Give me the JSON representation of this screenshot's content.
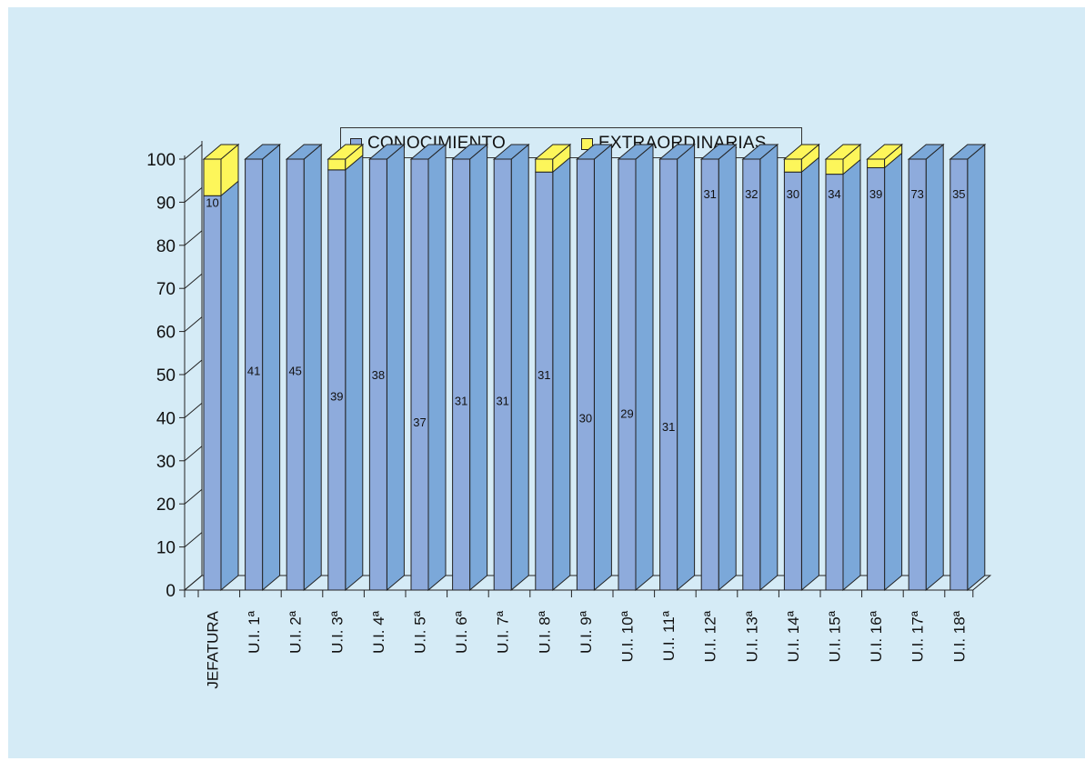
{
  "chart_data": {
    "type": "bar",
    "stacked": true,
    "three_d": true,
    "percent_stacked": true,
    "title": "",
    "xlabel": "",
    "ylabel": "",
    "ylim": [
      0,
      100
    ],
    "yticks": [
      "0",
      "10",
      "20",
      "30",
      "40",
      "50",
      "60",
      "70",
      "80",
      "90",
      "100"
    ],
    "categories": [
      "JEFATURA",
      "U.I. 1ª",
      "U.I. 2ª",
      "U.I. 3ª",
      "U.I. 4ª",
      "U.I. 5ª",
      "U.I. 6ª",
      "U.I. 7ª",
      "U.I. 8ª",
      "U.I. 9ª",
      "U.I. 10ª",
      "U.I. 11ª",
      "U.I. 12ª",
      "U.I. 13ª",
      "U.I. 14ª",
      "U.I. 15ª",
      "U.I. 16ª",
      "U.I. 17ª",
      "U.I. 18ª"
    ],
    "series": [
      {
        "name": "CONOCIMIENTO",
        "color": "#8eabdc",
        "values": [
          91.5,
          100,
          100,
          97.5,
          100,
          100,
          100,
          100,
          97,
          100,
          100,
          100,
          100,
          100,
          97,
          96.5,
          98,
          100,
          100
        ]
      },
      {
        "name": "EXTRAORDINARIAS",
        "color": "#fdf65a",
        "values": [
          8.5,
          0,
          0,
          2.5,
          0,
          0,
          0,
          0,
          3,
          0,
          0,
          0,
          0,
          0,
          3,
          3.5,
          2,
          0,
          0
        ]
      }
    ],
    "data_labels": [
      "10",
      "41",
      "45",
      "39",
      "38",
      "37",
      "31",
      "31",
      "31",
      "30",
      "29",
      "31",
      "31",
      "32",
      "30",
      "34",
      "39",
      "73",
      "35"
    ],
    "data_label_y": [
      90,
      51,
      51,
      45,
      50,
      39,
      44,
      44,
      50,
      40,
      41,
      38,
      92,
      92,
      92,
      92,
      92,
      92,
      92
    ],
    "legend_position": "top-center",
    "grid": false
  }
}
